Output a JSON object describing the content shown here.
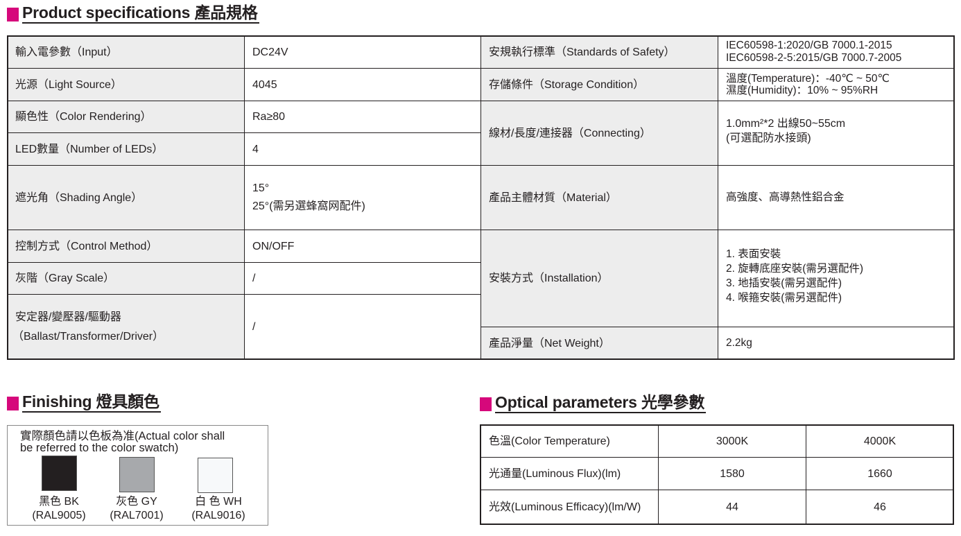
{
  "spec": {
    "title": "Product specifications 產品規格",
    "left_rows": [
      {
        "label": "輸入電參數（Input）",
        "value": [
          "DC24V"
        ]
      },
      {
        "label": "光源（Light Source）",
        "value": [
          "4045"
        ]
      },
      {
        "label": "顯色性（Color Rendering）",
        "value": [
          "Ra≥80"
        ]
      },
      {
        "label": "LED數量（Number of LEDs）",
        "value": [
          "4"
        ]
      },
      {
        "label": "遮光角（Shading Angle）",
        "value": [
          "15°",
          "25°(需另選蜂窩网配件)"
        ]
      },
      {
        "label": "控制方式（Control Method）",
        "value": [
          "ON/OFF"
        ]
      },
      {
        "label": "灰階（Gray Scale）",
        "value": [
          "/"
        ]
      },
      {
        "label": "安定器/變壓器/驅動器\n（Ballast/Transformer/Driver）",
        "label_lines": [
          "安定器/變壓器/驅動器",
          "（Ballast/Transformer/Driver）"
        ],
        "value": [
          "/"
        ]
      }
    ],
    "right_rows": [
      {
        "label": "安規執行標準（Standards of Safety）",
        "value": [
          "IEC60598-1:2020/GB 7000.1-2015",
          "IEC60598-2-5:2015/GB 7000.7-2005"
        ]
      },
      {
        "label": "存儲條件（Storage Condition）",
        "value": [
          "溫度(Temperature)：-40℃ ~ 50℃",
          "濕度(Humidity)：10% ~ 95%RH"
        ]
      },
      {
        "label": "線材/長度/連接器（Connecting）",
        "value": [
          "1.0mm²*2 出線50~55cm",
          "(可選配防水接頭)"
        ]
      },
      {
        "label": "產品主體材質（Material）",
        "value": [
          "高強度、高導熱性鋁合金"
        ]
      },
      {
        "label": "安裝方式（Installation）",
        "value": [
          "1. 表面安裝",
          "2. 旋轉底座安裝(需另選配件)",
          "3. 地插安裝(需另選配件)",
          "4. 喉箍安裝(需另選配件)"
        ]
      },
      {
        "label": "產品淨量（Net Weight）",
        "value": [
          "2.2kg"
        ]
      }
    ]
  },
  "finishing": {
    "title": "Finishing 燈具顏色",
    "note_lines": [
      "實際顏色請以色板為准(Actual color shall",
      "be referred to the color swatch)"
    ],
    "swatches": [
      {
        "name": "黑色 BK",
        "code": "(RAL9005)",
        "color": "#231f20"
      },
      {
        "name": "灰色 GY",
        "code": "(RAL7001)",
        "color": "#a7a9ac"
      },
      {
        "name": "白 色 WH",
        "code": "(RAL9016)",
        "color": "#f7f9fa"
      }
    ]
  },
  "optical": {
    "title": "Optical parameters 光學參數",
    "rows": [
      {
        "label": "色溫(Color Temperature)",
        "values": [
          "3000K",
          "4000K"
        ]
      },
      {
        "label": "光通量(Luminous Flux)(lm)",
        "values": [
          "1580",
          "1660"
        ]
      },
      {
        "label": "光效(Luminous Efficacy)(lm/W)",
        "values": [
          "44",
          "46"
        ]
      }
    ]
  },
  "colors": {
    "accent": "#d6087b",
    "label_bg": "#ededed",
    "border": "#231f20"
  }
}
